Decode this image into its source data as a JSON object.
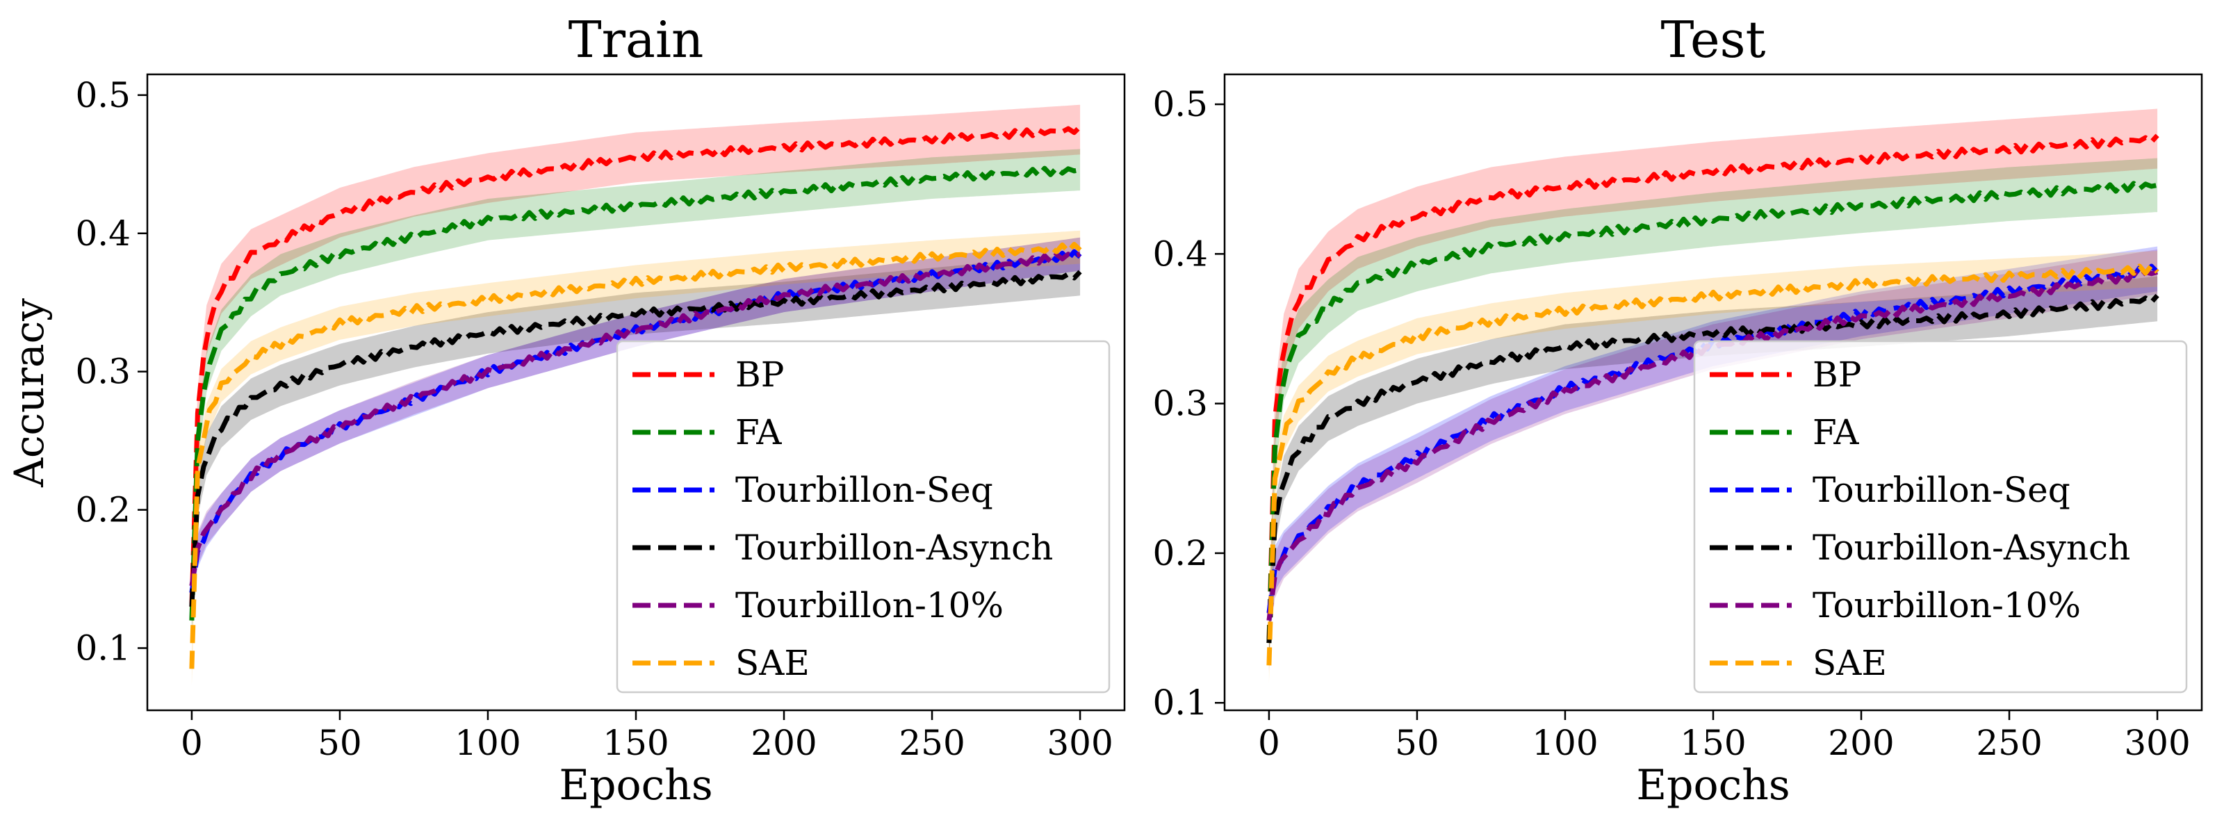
{
  "ylabel_shared": "Accuracy",
  "legend": [
    {
      "label": "BP",
      "color": "#ff0000"
    },
    {
      "label": "FA",
      "color": "#008000"
    },
    {
      "label": "Tourbillon-Seq",
      "color": "#0000ff"
    },
    {
      "label": "Tourbillon-Asynch",
      "color": "#000000"
    },
    {
      "label": "Tourbillon-10%",
      "color": "#800080"
    },
    {
      "label": "SAE",
      "color": "#ffa500"
    }
  ],
  "chart_data": [
    {
      "type": "line",
      "title": "Train",
      "xlabel": "Epochs",
      "ylabel": "Accuracy",
      "xlim": [
        -15,
        315
      ],
      "ylim": [
        0.055,
        0.515
      ],
      "xticks": [
        0,
        50,
        100,
        150,
        200,
        250,
        300
      ],
      "yticks": [
        0.1,
        0.2,
        0.3,
        0.4,
        0.5
      ],
      "legend_position": "lower right",
      "grid": false,
      "series": [
        {
          "name": "BP",
          "color": "#ff0000",
          "band": 0.018,
          "x": [
            0,
            2,
            5,
            10,
            20,
            30,
            50,
            75,
            100,
            150,
            200,
            250,
            300
          ],
          "y": [
            0.13,
            0.27,
            0.33,
            0.36,
            0.385,
            0.395,
            0.415,
            0.43,
            0.44,
            0.455,
            0.462,
            0.468,
            0.475
          ]
        },
        {
          "name": "FA",
          "color": "#008000",
          "band": 0.015,
          "x": [
            0,
            2,
            5,
            10,
            20,
            30,
            50,
            75,
            100,
            150,
            200,
            250,
            300
          ],
          "y": [
            0.12,
            0.25,
            0.3,
            0.33,
            0.355,
            0.37,
            0.385,
            0.398,
            0.41,
            0.42,
            0.43,
            0.44,
            0.446
          ]
        },
        {
          "name": "Tourbillon-Seq",
          "color": "#0000ff",
          "band": 0.012,
          "x": [
            0,
            2,
            5,
            10,
            20,
            30,
            50,
            75,
            100,
            150,
            200,
            250,
            300
          ],
          "y": [
            0.14,
            0.17,
            0.185,
            0.2,
            0.225,
            0.24,
            0.26,
            0.28,
            0.3,
            0.33,
            0.355,
            0.37,
            0.385
          ]
        },
        {
          "name": "Tourbillon-Asynch",
          "color": "#000000",
          "band": 0.015,
          "x": [
            0,
            2,
            5,
            10,
            20,
            30,
            50,
            75,
            100,
            150,
            200,
            250,
            300
          ],
          "y": [
            0.13,
            0.21,
            0.24,
            0.26,
            0.28,
            0.29,
            0.305,
            0.318,
            0.328,
            0.342,
            0.35,
            0.36,
            0.37
          ]
        },
        {
          "name": "Tourbillon-10%",
          "color": "#800080",
          "band": 0.012,
          "x": [
            0,
            2,
            5,
            10,
            20,
            30,
            50,
            75,
            100,
            150,
            200,
            250,
            300
          ],
          "y": [
            0.145,
            0.172,
            0.187,
            0.2,
            0.225,
            0.24,
            0.26,
            0.281,
            0.3,
            0.33,
            0.355,
            0.37,
            0.385
          ]
        },
        {
          "name": "SAE",
          "color": "#ffa500",
          "band": 0.012,
          "x": [
            0,
            2,
            5,
            10,
            20,
            30,
            50,
            75,
            100,
            150,
            200,
            250,
            300
          ],
          "y": [
            0.085,
            0.23,
            0.265,
            0.29,
            0.31,
            0.32,
            0.335,
            0.345,
            0.352,
            0.365,
            0.375,
            0.383,
            0.39
          ]
        }
      ]
    },
    {
      "type": "line",
      "title": "Test",
      "xlabel": "Epochs",
      "ylabel": "",
      "xlim": [
        -15,
        315
      ],
      "ylim": [
        0.095,
        0.52
      ],
      "xticks": [
        0,
        50,
        100,
        150,
        200,
        250,
        300
      ],
      "yticks": [
        0.1,
        0.2,
        0.3,
        0.4,
        0.5
      ],
      "legend_position": "lower right",
      "grid": false,
      "series": [
        {
          "name": "BP",
          "color": "#ff0000",
          "band": 0.02,
          "x": [
            0,
            2,
            5,
            10,
            20,
            30,
            50,
            75,
            100,
            150,
            200,
            250,
            300
          ],
          "y": [
            0.14,
            0.29,
            0.34,
            0.37,
            0.395,
            0.41,
            0.425,
            0.438,
            0.445,
            0.455,
            0.463,
            0.47,
            0.477
          ]
        },
        {
          "name": "FA",
          "color": "#008000",
          "band": 0.018,
          "x": [
            0,
            2,
            5,
            10,
            20,
            30,
            50,
            75,
            100,
            150,
            200,
            250,
            300
          ],
          "y": [
            0.14,
            0.27,
            0.32,
            0.345,
            0.365,
            0.38,
            0.393,
            0.405,
            0.412,
            0.423,
            0.432,
            0.44,
            0.446
          ]
        },
        {
          "name": "Tourbillon-Seq",
          "color": "#0000ff",
          "band": 0.015,
          "x": [
            0,
            2,
            5,
            10,
            20,
            30,
            50,
            75,
            100,
            150,
            200,
            250,
            300
          ],
          "y": [
            0.16,
            0.19,
            0.2,
            0.21,
            0.23,
            0.245,
            0.265,
            0.29,
            0.31,
            0.34,
            0.36,
            0.375,
            0.39
          ]
        },
        {
          "name": "Tourbillon-Asynch",
          "color": "#000000",
          "band": 0.015,
          "x": [
            0,
            2,
            5,
            10,
            20,
            30,
            50,
            75,
            100,
            150,
            200,
            250,
            300
          ],
          "y": [
            0.14,
            0.22,
            0.25,
            0.27,
            0.29,
            0.3,
            0.315,
            0.328,
            0.338,
            0.347,
            0.353,
            0.36,
            0.37
          ]
        },
        {
          "name": "Tourbillon-10%",
          "color": "#800080",
          "band": 0.015,
          "x": [
            0,
            2,
            5,
            10,
            20,
            30,
            50,
            75,
            100,
            150,
            200,
            250,
            300
          ],
          "y": [
            0.155,
            0.185,
            0.198,
            0.208,
            0.228,
            0.243,
            0.262,
            0.288,
            0.308,
            0.338,
            0.358,
            0.372,
            0.388
          ]
        },
        {
          "name": "SAE",
          "color": "#ffa500",
          "band": 0.012,
          "x": [
            0,
            2,
            5,
            10,
            20,
            30,
            50,
            75,
            100,
            150,
            200,
            250,
            300
          ],
          "y": [
            0.125,
            0.25,
            0.28,
            0.3,
            0.32,
            0.33,
            0.345,
            0.355,
            0.362,
            0.372,
            0.38,
            0.385,
            0.39
          ]
        }
      ]
    }
  ]
}
